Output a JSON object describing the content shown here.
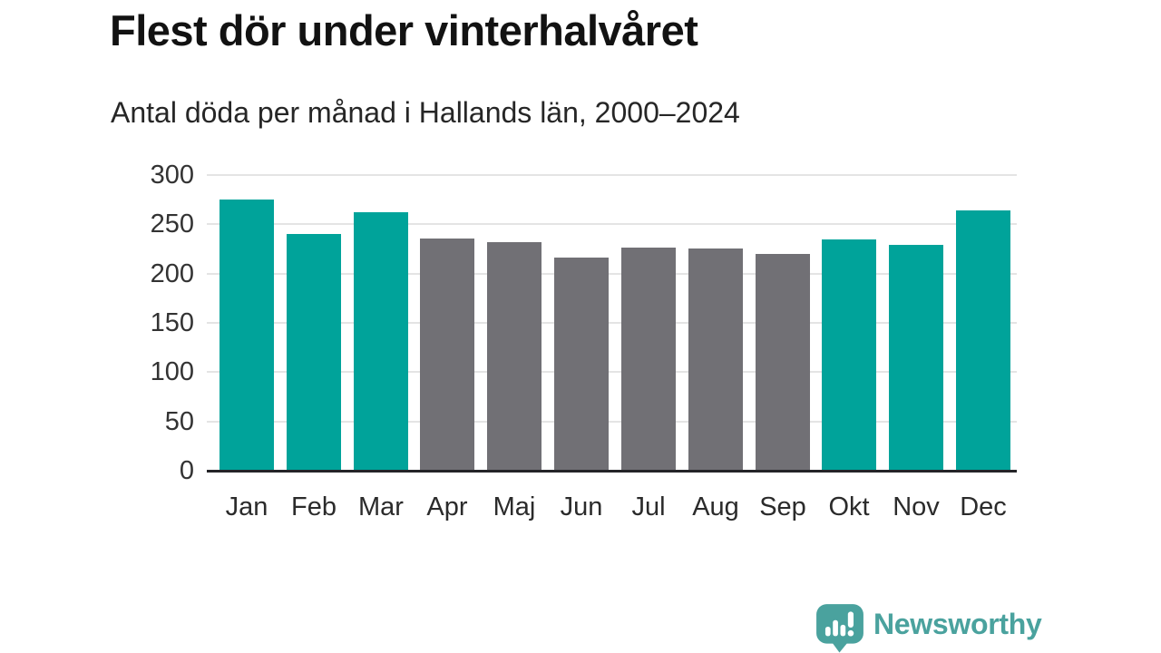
{
  "header": {
    "title": "Flest dör under vinterhalvåret",
    "subtitle": "Antal döda per månad i Hallands län, 2000–2024"
  },
  "chart_data": {
    "type": "bar",
    "title": "Flest dör under vinterhalvåret",
    "subtitle": "Antal döda per månad i Hallands län, 2000–2024",
    "categories": [
      "Jan",
      "Feb",
      "Mar",
      "Apr",
      "Maj",
      "Jun",
      "Jul",
      "Aug",
      "Sep",
      "Okt",
      "Nov",
      "Dec"
    ],
    "values": [
      275,
      240,
      262,
      236,
      232,
      216,
      226,
      225,
      220,
      235,
      229,
      264
    ],
    "bar_colors": [
      "#00a39a",
      "#00a39a",
      "#00a39a",
      "#717075",
      "#717075",
      "#717075",
      "#717075",
      "#717075",
      "#717075",
      "#00a39a",
      "#00a39a",
      "#00a39a"
    ],
    "highlight_color": "#00a39a",
    "muted_color": "#717075",
    "y_ticks": [
      0,
      50,
      100,
      150,
      200,
      250,
      300
    ],
    "ylim": [
      0,
      300
    ],
    "xlabel": "",
    "ylabel": "",
    "grid": true,
    "legend": "none",
    "gridline_color": "#e4e4e4",
    "axis_color": "#242428"
  },
  "footer": {
    "brand": "Newsworthy",
    "brand_color": "#4aa29e",
    "logo_icon": "newsworthy-speech-bubble-bar-chart-icon"
  }
}
